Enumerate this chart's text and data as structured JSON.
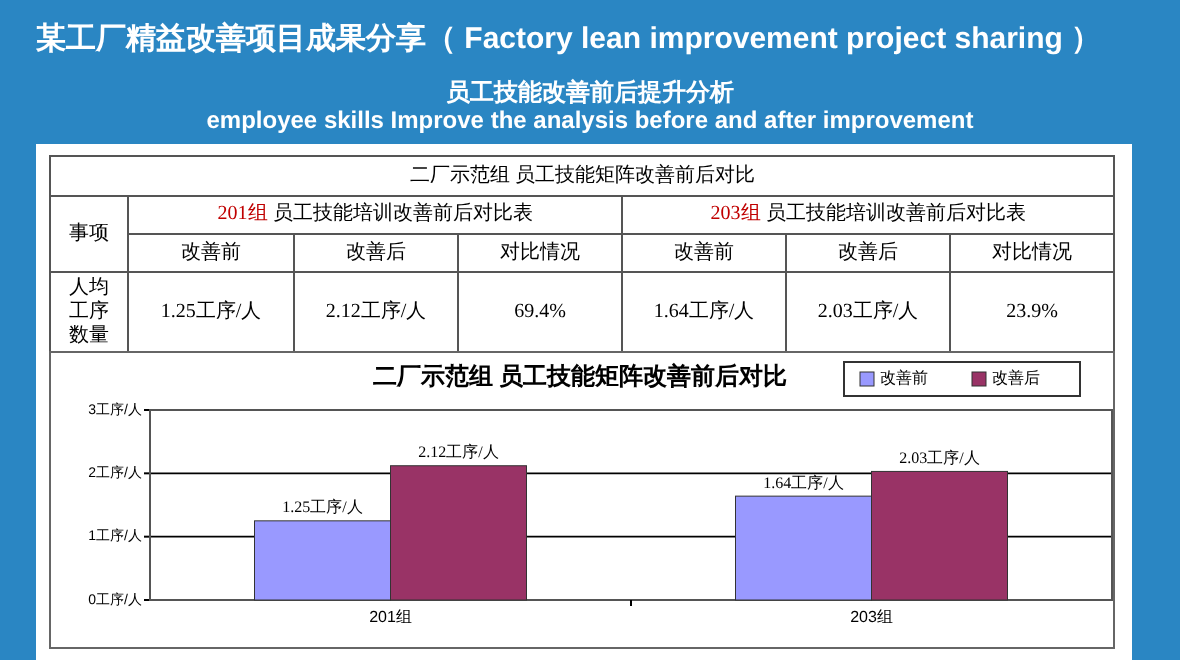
{
  "chart_data": {
    "type": "bar",
    "title": "二厂示范组 员工技能矩阵改善前后对比",
    "categories": [
      "201组",
      "203组"
    ],
    "series": [
      {
        "name": "改善前",
        "color": "#9999ff",
        "values": [
          1.25,
          1.64
        ],
        "value_labels": [
          "1.25工序/人",
          "1.64工序/人"
        ]
      },
      {
        "name": "改善后",
        "color": "#993366",
        "values": [
          2.12,
          2.03
        ],
        "value_labels": [
          "2.12工序/人",
          "2.03工序/人"
        ]
      }
    ],
    "ylim": [
      0,
      3
    ],
    "yticks": [
      {
        "value": 0,
        "label": "0工序/人"
      },
      {
        "value": 1,
        "label": "1工序/人"
      },
      {
        "value": 2,
        "label": "2工序/人"
      },
      {
        "value": 3,
        "label": "3工序/人"
      }
    ],
    "grid": "y",
    "legend": "top right",
    "annotations": [
      "某工厂精益改善项目成果分享（ Factory lean improvement project sharing ）",
      "员工技能改善前后提升分析",
      "employee skills Improve the analysis before and after improvement",
      "二厂示范组 员工技能矩阵改善前后对比",
      "事项",
      "201组 员工技能培训改善前后对比表",
      "203组 员工技能培训改善前后对比表",
      "改善前",
      "改善后",
      "对比情况",
      "改善前",
      "改善后",
      "对比情况",
      "人均工序数量",
      "1.25工序/人",
      "2.12工序/人",
      "69.4%",
      "1.64工序/人",
      "2.03工序/人",
      "23.9%"
    ]
  }
}
